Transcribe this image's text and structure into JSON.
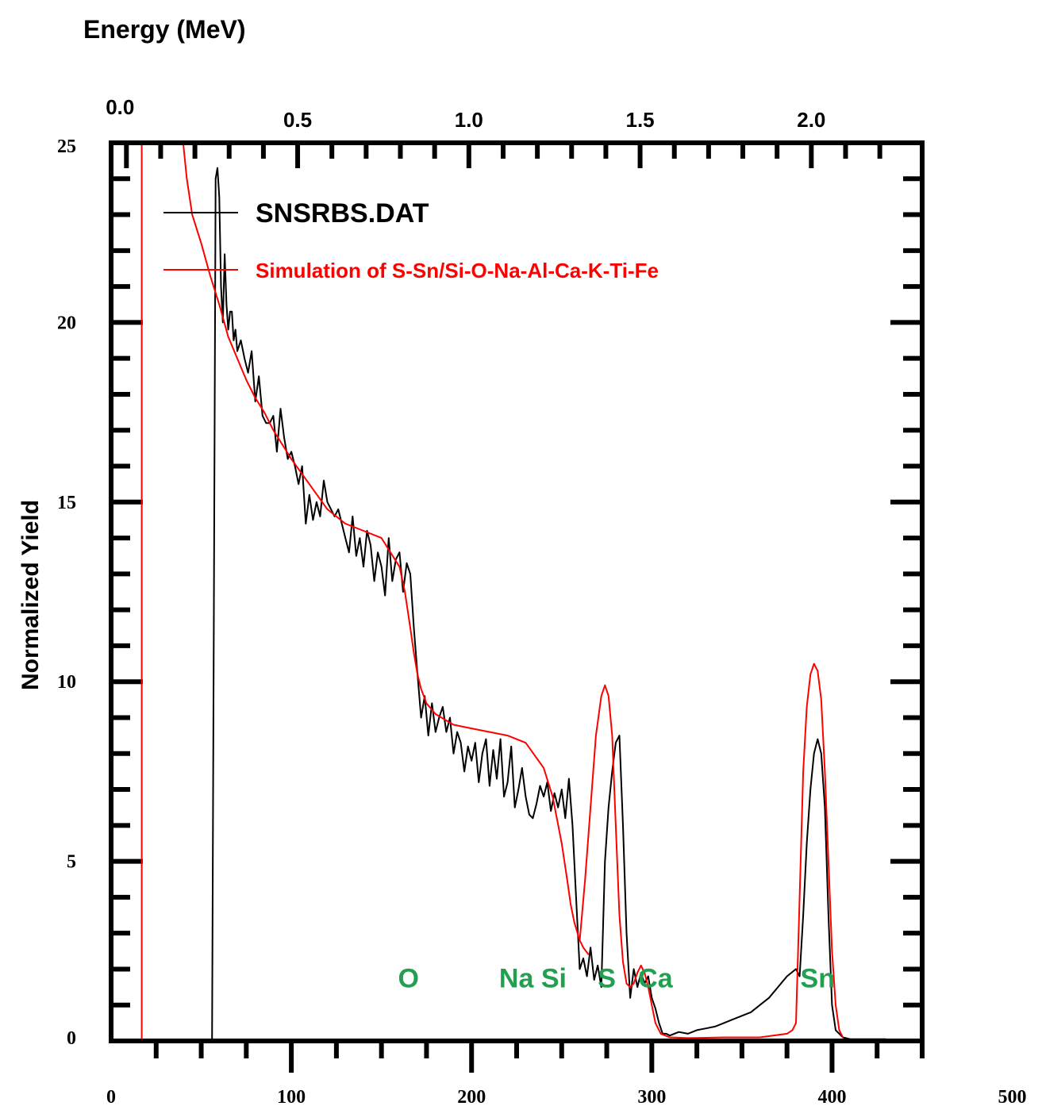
{
  "chart_data": {
    "type": "line",
    "top_axis_label": "Energy (MeV)",
    "ylabel": "Normalized Yield",
    "xlabel": "",
    "xlim": [
      0,
      450
    ],
    "ylim": [
      0,
      25
    ],
    "top_axis": {
      "ticks": [
        0.0,
        0.5,
        1.0,
        1.5,
        2.0
      ],
      "tick_labels": [
        "0.0",
        "0.5",
        "1.0",
        "1.5",
        "2.0"
      ],
      "channel_at_zero": 8.5,
      "channels_per_mev": 190
    },
    "x_ticks": [
      0,
      100,
      200,
      300,
      400,
      500
    ],
    "x_tick_labels": [
      "0",
      "100",
      "200",
      "300",
      "400",
      "500"
    ],
    "y_ticks": [
      0,
      5,
      10,
      15,
      20,
      25
    ],
    "y_tick_labels": [
      "0",
      "5",
      "10",
      "15",
      "20",
      "25"
    ],
    "legend_position": "top-left",
    "series": [
      {
        "name": "SNSRBS.DAT",
        "color": "#000000",
        "x": [
          56,
          57,
          58,
          59,
          60,
          61,
          62,
          63,
          64,
          65,
          66,
          67,
          68,
          69,
          70,
          72,
          74,
          76,
          78,
          80,
          82,
          84,
          86,
          88,
          90,
          92,
          94,
          96,
          98,
          100,
          102,
          104,
          106,
          108,
          110,
          112,
          114,
          116,
          118,
          120,
          122,
          124,
          126,
          128,
          130,
          132,
          134,
          136,
          138,
          140,
          142,
          144,
          146,
          148,
          150,
          152,
          154,
          156,
          158,
          160,
          162,
          164,
          166,
          168,
          170,
          172,
          174,
          176,
          178,
          180,
          182,
          184,
          186,
          188,
          190,
          192,
          194,
          196,
          198,
          200,
          202,
          204,
          206,
          208,
          210,
          212,
          214,
          216,
          218,
          220,
          222,
          224,
          226,
          228,
          230,
          232,
          234,
          236,
          238,
          240,
          242,
          244,
          246,
          248,
          250,
          252,
          254,
          256,
          258,
          260,
          262,
          264,
          266,
          268,
          270,
          272,
          274,
          276,
          278,
          280,
          282,
          284,
          286,
          288,
          290,
          292,
          294,
          296,
          298,
          300,
          302,
          304,
          306,
          308,
          310,
          315,
          320,
          325,
          330,
          335,
          340,
          345,
          350,
          355,
          360,
          365,
          370,
          375,
          380,
          382,
          384,
          386,
          388,
          390,
          392,
          394,
          396,
          398,
          400,
          402,
          404,
          406,
          410,
          420,
          430
        ],
        "y": [
          0,
          12,
          24,
          24.3,
          23.5,
          21,
          20,
          21.9,
          20.5,
          19.8,
          20.3,
          20.3,
          19.5,
          19.8,
          19.2,
          19.5,
          19.0,
          18.6,
          19.2,
          17.8,
          18.5,
          17.4,
          17.2,
          17.2,
          17.4,
          16.4,
          17.6,
          16.8,
          16.2,
          16.4,
          16.0,
          15.5,
          16.0,
          14.4,
          15.2,
          14.5,
          15.0,
          14.6,
          15.6,
          15.0,
          14.8,
          14.6,
          14.8,
          14.4,
          14.0,
          13.6,
          14.6,
          13.5,
          14.0,
          13.2,
          14.2,
          13.8,
          12.8,
          13.6,
          13.2,
          12.4,
          14.0,
          12.8,
          13.4,
          13.6,
          12.5,
          13.3,
          13.0,
          11.5,
          10.2,
          9.0,
          9.6,
          8.5,
          9.4,
          8.6,
          9.0,
          9.3,
          8.6,
          9.0,
          8.0,
          8.6,
          8.3,
          7.5,
          8.2,
          7.8,
          8.3,
          7.2,
          8.0,
          8.4,
          7.1,
          8.1,
          7.3,
          8.4,
          6.8,
          7.2,
          8.2,
          6.5,
          7.0,
          7.6,
          6.8,
          6.3,
          6.2,
          6.6,
          7.1,
          6.8,
          7.2,
          6.4,
          6.9,
          6.5,
          7.0,
          6.2,
          7.3,
          6.0,
          4.0,
          2.0,
          2.3,
          1.8,
          2.6,
          1.7,
          2.1,
          1.5,
          5.0,
          6.5,
          7.5,
          8.3,
          8.5,
          6.0,
          3.0,
          1.2,
          2.0,
          1.5,
          1.9,
          1.6,
          1.8,
          1.2,
          0.9,
          0.5,
          0.2,
          0.2,
          0.15,
          0.25,
          0.2,
          0.3,
          0.35,
          0.4,
          0.5,
          0.6,
          0.7,
          0.8,
          1.0,
          1.2,
          1.5,
          1.8,
          2.0,
          1.8,
          3.5,
          5.5,
          7.0,
          8.0,
          8.4,
          8.0,
          6.5,
          3.5,
          1.0,
          0.3,
          0.2,
          0.1,
          0.05,
          0.05,
          0.05
        ]
      },
      {
        "name": "Simulation of S-Sn/Si-O-Na-Al-Ca-K-Ti-Fe",
        "color": "#ff0000",
        "x": [
          40,
          42,
          45,
          50,
          55,
          60,
          65,
          70,
          75,
          80,
          85,
          90,
          95,
          100,
          110,
          120,
          130,
          140,
          150,
          155,
          160,
          163,
          166,
          168,
          170,
          172,
          175,
          180,
          190,
          200,
          210,
          220,
          230,
          240,
          245,
          250,
          253,
          255,
          257,
          260,
          262,
          265
        ],
        "y": [
          25.0,
          24.0,
          23.0,
          22.2,
          21.3,
          20.5,
          19.6,
          19.0,
          18.4,
          17.9,
          17.5,
          17.0,
          16.6,
          16.2,
          15.5,
          14.8,
          14.4,
          14.2,
          14.0,
          13.6,
          13.2,
          12.5,
          11.5,
          10.8,
          10.2,
          9.8,
          9.4,
          9.1,
          8.8,
          8.7,
          8.6,
          8.5,
          8.3,
          7.6,
          6.8,
          5.5,
          4.5,
          3.8,
          3.3,
          2.8,
          2.6,
          2.4
        ]
      },
      {
        "name": "",
        "color": "#ff0000",
        "x": [
          260,
          263,
          266,
          269,
          272,
          274,
          276,
          278,
          280,
          282,
          284,
          286,
          288,
          290,
          292,
          294,
          296,
          298,
          300,
          302,
          305,
          310,
          320,
          340,
          360,
          375,
          378,
          380,
          382,
          384,
          386,
          388,
          390,
          392,
          394,
          396,
          398,
          400,
          402,
          404,
          406
        ],
        "y": [
          2.8,
          4.5,
          6.5,
          8.5,
          9.6,
          9.9,
          9.6,
          8.5,
          6.0,
          3.5,
          2.2,
          1.6,
          1.5,
          1.6,
          1.9,
          2.1,
          1.9,
          1.5,
          1.0,
          0.5,
          0.2,
          0.1,
          0.08,
          0.1,
          0.1,
          0.2,
          0.3,
          0.5,
          4.0,
          7.5,
          9.3,
          10.2,
          10.5,
          10.3,
          9.5,
          7.5,
          5.0,
          2.5,
          1.0,
          0.3,
          0.1
        ]
      },
      {
        "name": "",
        "color": "#ff0000",
        "x": [
          17,
          17
        ],
        "y": [
          0,
          25
        ]
      }
    ],
    "annotations": [
      {
        "text": "O",
        "x": 165,
        "y": 1.8,
        "color": "#22a050"
      },
      {
        "text": "Na Si",
        "x": 234,
        "y": 1.8,
        "color": "#22a050"
      },
      {
        "text": "S",
        "x": 275,
        "y": 1.8,
        "color": "#22a050"
      },
      {
        "text": "Ca",
        "x": 302,
        "y": 1.8,
        "color": "#22a050"
      },
      {
        "text": "Sn",
        "x": 392,
        "y": 1.8,
        "color": "#22a050"
      }
    ]
  }
}
